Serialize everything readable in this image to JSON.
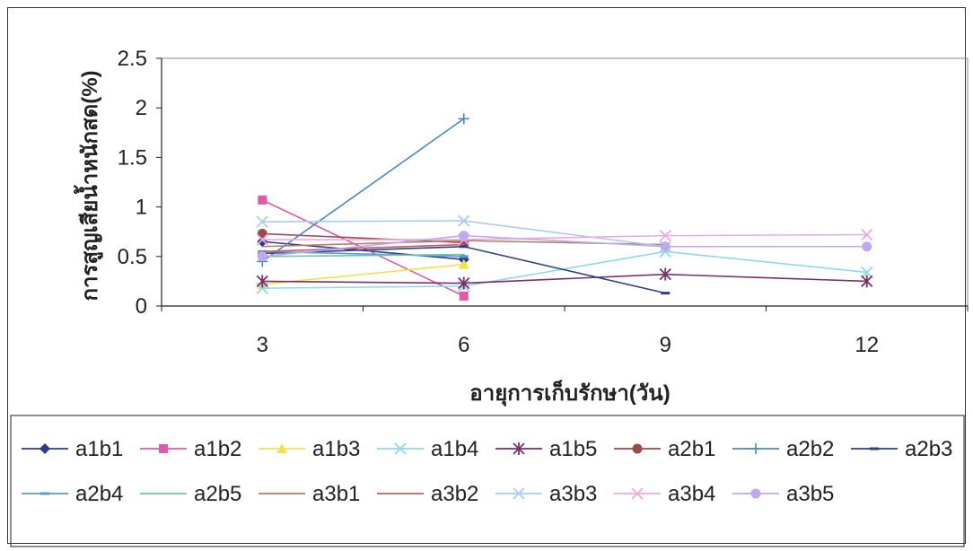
{
  "chart_data": {
    "type": "line",
    "title": "",
    "xlabel": "อายุการเก็บรักษา(วัน)",
    "ylabel": "การสูญเสียน้ำหนักสด(%)",
    "categories": [
      "3",
      "6",
      "9",
      "12"
    ],
    "yticks": [
      "0",
      "0.5",
      "1",
      "1.5",
      "2",
      "2.5"
    ],
    "ylim": [
      0,
      2.5
    ],
    "grid": false,
    "legend_position": "bottom",
    "series": [
      {
        "name": "a1b1",
        "color": "#2f3b8f",
        "marker": "diamond",
        "values": [
          0.65,
          0.47,
          null,
          null
        ]
      },
      {
        "name": "a1b2",
        "color": "#e05aa8",
        "marker": "square",
        "values": [
          1.07,
          0.1,
          null,
          null
        ]
      },
      {
        "name": "a1b3",
        "color": "#f2e24a",
        "marker": "triangle",
        "values": [
          0.22,
          0.42,
          null,
          null
        ]
      },
      {
        "name": "a1b4",
        "color": "#8fd8ee",
        "marker": "x",
        "values": [
          0.18,
          0.2,
          0.55,
          0.34
        ]
      },
      {
        "name": "a1b5",
        "color": "#7a2e6a",
        "marker": "star",
        "values": [
          0.25,
          0.23,
          0.32,
          0.25
        ]
      },
      {
        "name": "a2b1",
        "color": "#9b4a4a",
        "marker": "circle",
        "values": [
          0.73,
          0.64,
          null,
          null
        ]
      },
      {
        "name": "a2b2",
        "color": "#4a86c8",
        "marker": "plus",
        "values": [
          0.45,
          1.89,
          null,
          null
        ]
      },
      {
        "name": "a2b3",
        "color": "#2e3f8a",
        "marker": "dash",
        "values": [
          0.53,
          0.6,
          0.13,
          null
        ]
      },
      {
        "name": "a2b4",
        "color": "#5b9bd5",
        "marker": "dash",
        "values": [
          0.55,
          0.5,
          null,
          null
        ]
      },
      {
        "name": "a2b5",
        "color": "#6fc6a0",
        "marker": "none",
        "values": [
          0.5,
          0.52,
          null,
          null
        ]
      },
      {
        "name": "a3b1",
        "color": "#b08060",
        "marker": "none",
        "values": [
          0.6,
          0.66,
          0.62,
          null
        ]
      },
      {
        "name": "a3b2",
        "color": "#c06060",
        "marker": "none",
        "values": [
          0.55,
          0.62,
          null,
          null
        ]
      },
      {
        "name": "a3b3",
        "color": "#a9ccf0",
        "marker": "x",
        "values": [
          0.85,
          0.86,
          0.6,
          null
        ]
      },
      {
        "name": "a3b4",
        "color": "#f0a8e0",
        "marker": "x",
        "values": [
          0.67,
          0.67,
          0.71,
          0.72
        ]
      },
      {
        "name": "a3b5",
        "color": "#c0a8f0",
        "marker": "circle",
        "values": [
          0.5,
          0.71,
          0.6,
          0.6
        ]
      }
    ]
  }
}
